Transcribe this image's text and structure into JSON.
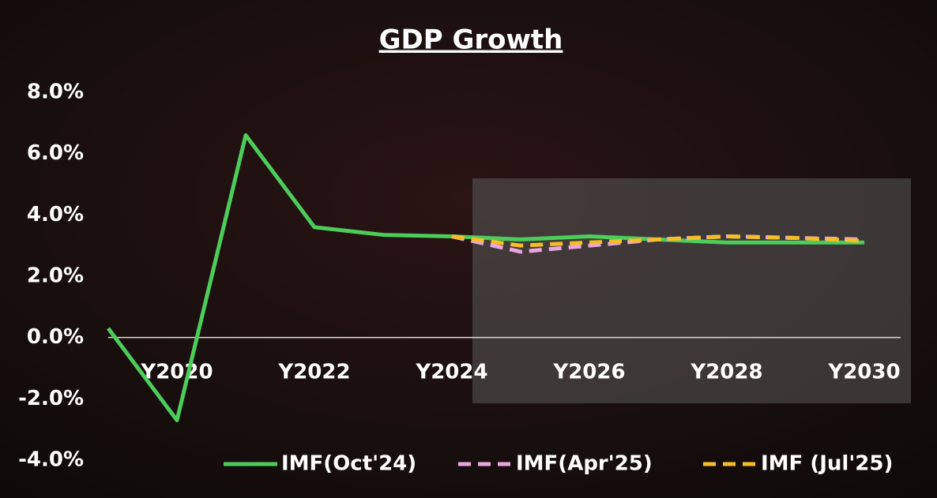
{
  "chart_data": {
    "type": "line",
    "title": "GDP Growth",
    "categories": [
      null,
      "Y2020",
      null,
      "Y2022",
      null,
      "Y2024",
      null,
      "Y2026",
      null,
      "Y2028",
      null,
      "Y2030"
    ],
    "series": [
      {
        "name": "IMF(Oct'24)",
        "color": "#4ccd5a",
        "dash": false,
        "values": [
          0.3,
          -2.7,
          6.6,
          3.6,
          3.35,
          3.3,
          3.2,
          3.3,
          3.2,
          3.1,
          3.1,
          3.1
        ]
      },
      {
        "name": "IMF(Apr'25)",
        "color": "#e9a6e0",
        "dash": true,
        "values": [
          null,
          null,
          null,
          null,
          null,
          3.3,
          2.8,
          3.0,
          3.2,
          3.3,
          3.25,
          3.2
        ]
      },
      {
        "name": "IMF (Jul'25)",
        "color": "#f5bd27",
        "dash": true,
        "values": [
          null,
          null,
          null,
          null,
          null,
          3.3,
          3.0,
          3.1,
          3.2,
          3.3,
          3.25,
          3.15
        ]
      }
    ],
    "ylim": [
      -4,
      8
    ],
    "yticks": [
      {
        "value": -4,
        "label": "-4.0%"
      },
      {
        "value": -2,
        "label": "-2.0%"
      },
      {
        "value": 0,
        "label": "0.0%"
      },
      {
        "value": 2,
        "label": "2.0%"
      },
      {
        "value": 4,
        "label": "4.0%"
      },
      {
        "value": 6,
        "label": "6.0%"
      },
      {
        "value": 8,
        "label": "8.0%"
      }
    ],
    "legend": "bottom-right"
  }
}
